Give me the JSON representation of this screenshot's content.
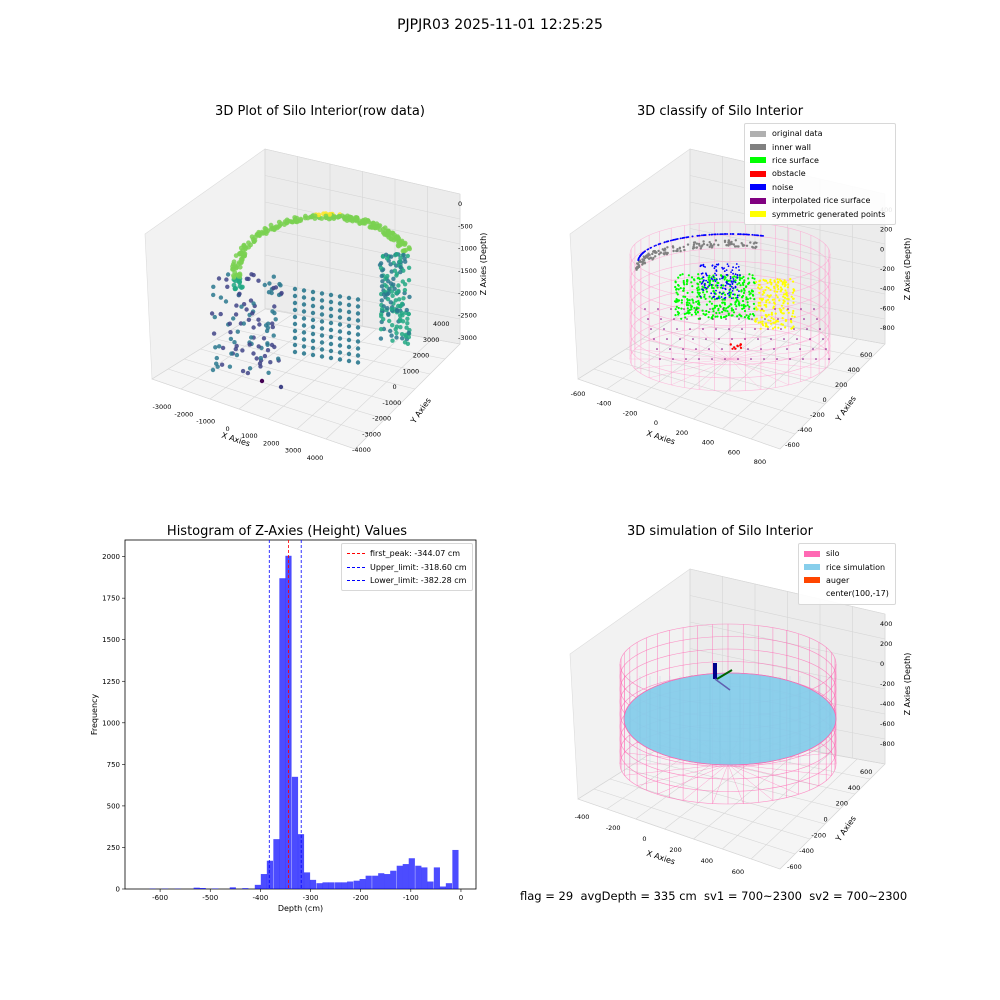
{
  "suptitle": "PJPJR03 2025-11-01 12:25:25",
  "panels": {
    "raw": {
      "title": "3D Plot of Silo Interior(row data)",
      "xlabel": "X Axies",
      "ylabel": "Y Axies",
      "zlabel": "Z Axies (Depth)",
      "xticks": [
        "-3000",
        "-2000",
        "-1000",
        "0",
        "1000",
        "2000",
        "3000",
        "4000"
      ],
      "yticks": [
        "-4000",
        "-3000",
        "-2000",
        "-1000",
        "0",
        "1000",
        "2000",
        "3000",
        "4000"
      ],
      "zticks": [
        "0",
        "-500",
        "-1000",
        "-1500",
        "-2000",
        "-2500",
        "-3000"
      ],
      "colormap": "viridis"
    },
    "classify": {
      "title": "3D classify of Silo Interior",
      "xlabel": "X Axies",
      "ylabel": "Y Axies",
      "zlabel": "Z Axies (Depth)",
      "xticks": [
        "-600",
        "-400",
        "-200",
        "0",
        "200",
        "400",
        "600",
        "800"
      ],
      "yticks": [
        "-600",
        "-400",
        "-200",
        "0",
        "200",
        "400",
        "600"
      ],
      "zticks": [
        "400",
        "200",
        "0",
        "-200",
        "-400",
        "-600",
        "-800"
      ],
      "legend": [
        {
          "label": "original data",
          "color": "#b0b0b0"
        },
        {
          "label": "inner wall",
          "color": "#808080"
        },
        {
          "label": "rice surface",
          "color": "#00ff00"
        },
        {
          "label": "obstacle",
          "color": "#ff0000"
        },
        {
          "label": "noise",
          "color": "#0000ff"
        },
        {
          "label": "interpolated rice surface",
          "color": "#800080"
        },
        {
          "label": "symmetric generated points",
          "color": "#ffff00"
        }
      ]
    },
    "simulation": {
      "title": "3D simulation of Silo Interior",
      "xlabel": "X Axies",
      "ylabel": "Y Axies",
      "zlabel": "Z Axies (Depth)",
      "xticks": [
        "-400",
        "-200",
        "0",
        "200",
        "400",
        "600"
      ],
      "yticks": [
        "-600",
        "-400",
        "-200",
        "0",
        "200",
        "400",
        "600"
      ],
      "zticks": [
        "400",
        "200",
        "0",
        "-200",
        "-400",
        "-600",
        "-800"
      ],
      "legend": [
        {
          "label": "silo",
          "color": "#ff69b4"
        },
        {
          "label": "rice simulation",
          "color": "#87ceeb"
        },
        {
          "label": "auger",
          "color": "#ff4500"
        },
        {
          "label": "center(100,-17)",
          "color": ""
        }
      ]
    }
  },
  "chart_data": [
    {
      "type": "bar",
      "title": "Histogram of Z-Axies (Height) Values",
      "xlabel": "Depth (cm)",
      "ylabel": "Frequency",
      "xlim": [
        -670,
        30
      ],
      "ylim": [
        0,
        2100
      ],
      "xticks": [
        -600,
        -500,
        -400,
        -300,
        -200,
        -100,
        0
      ],
      "yticks": [
        0,
        250,
        500,
        750,
        1000,
        1250,
        1500,
        1750,
        2000
      ],
      "bar_color": "#0000ff",
      "bin_width": 12.3,
      "bins": [
        {
          "x": -615,
          "v": 2
        },
        {
          "x": -590,
          "v": 2
        },
        {
          "x": -565,
          "v": 2
        },
        {
          "x": -527,
          "v": 8
        },
        {
          "x": -515,
          "v": 6
        },
        {
          "x": -490,
          "v": 3
        },
        {
          "x": -455,
          "v": 10
        },
        {
          "x": -430,
          "v": 5
        },
        {
          "x": -405,
          "v": 25
        },
        {
          "x": -393,
          "v": 90
        },
        {
          "x": -381,
          "v": 170
        },
        {
          "x": -368,
          "v": 300
        },
        {
          "x": -356,
          "v": 1870
        },
        {
          "x": -344,
          "v": 2005
        },
        {
          "x": -331,
          "v": 675
        },
        {
          "x": -319,
          "v": 330
        },
        {
          "x": -307,
          "v": 100
        },
        {
          "x": -295,
          "v": 55
        },
        {
          "x": -282,
          "v": 35
        },
        {
          "x": -270,
          "v": 40
        },
        {
          "x": -258,
          "v": 40
        },
        {
          "x": -245,
          "v": 40
        },
        {
          "x": -233,
          "v": 40
        },
        {
          "x": -221,
          "v": 45
        },
        {
          "x": -208,
          "v": 50
        },
        {
          "x": -196,
          "v": 60
        },
        {
          "x": -184,
          "v": 80
        },
        {
          "x": -171,
          "v": 80
        },
        {
          "x": -159,
          "v": 95
        },
        {
          "x": -147,
          "v": 90
        },
        {
          "x": -135,
          "v": 110
        },
        {
          "x": -122,
          "v": 140
        },
        {
          "x": -110,
          "v": 150
        },
        {
          "x": -98,
          "v": 185
        },
        {
          "x": -85,
          "v": 140
        },
        {
          "x": -73,
          "v": 130
        },
        {
          "x": -61,
          "v": 45
        },
        {
          "x": -48,
          "v": 130
        },
        {
          "x": -36,
          "v": 15
        },
        {
          "x": -24,
          "v": 35
        },
        {
          "x": -11,
          "v": 235
        }
      ],
      "vlines": [
        {
          "label": "first_peak: -344.07 cm",
          "x": -344.07,
          "color": "#ff0000"
        },
        {
          "label": "Upper_limit: -318.60 cm",
          "x": -318.6,
          "color": "#0000ff"
        },
        {
          "label": "Lower_limit: -382.28 cm",
          "x": -382.28,
          "color": "#0000ff"
        }
      ]
    }
  ],
  "footer": "flag = 29  avgDepth = 335 cm  sv1 = 700~2300  sv2 = 700~2300"
}
